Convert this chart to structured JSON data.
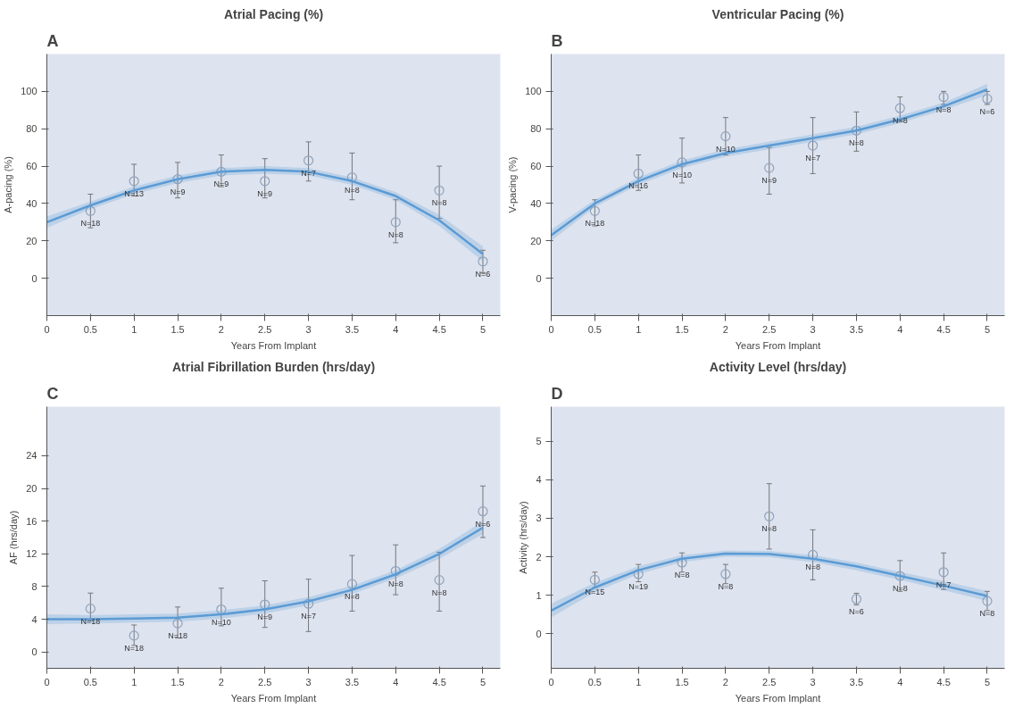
{
  "chart_data": [
    {
      "type": "scatter",
      "title": "Atrial Pacing (%)",
      "xlabel": "Years From Implant",
      "ylabel": "A-pacing (%)",
      "xlim": [
        0,
        5.2
      ],
      "ylim": [
        -20,
        120
      ],
      "xticks": [
        0,
        0.5,
        1,
        1.5,
        2,
        2.5,
        3,
        3.5,
        4,
        4.5,
        5
      ],
      "yticks": [
        0,
        20,
        40,
        60,
        80,
        100
      ],
      "grid": false,
      "marker": "circle",
      "x": [
        0.5,
        1,
        1.5,
        2,
        2.5,
        3,
        3.5,
        4,
        4.5,
        5
      ],
      "series": [
        {
          "color": "#8fa3bd",
          "values": [
            36,
            52,
            53,
            57,
            52,
            63,
            54,
            30,
            47,
            9
          ],
          "errors": [
            [
              27,
              45
            ],
            [
              44,
              61
            ],
            [
              43,
              62
            ],
            [
              49,
              66
            ],
            [
              43,
              64
            ],
            [
              52,
              73
            ],
            [
              42,
              67
            ],
            [
              19,
              42
            ],
            [
              32,
              60
            ],
            [
              3,
              15
            ]
          ]
        },
        {
          "type": "line",
          "color": "#5b9bd5",
          "marker": "none",
          "x": [
            0,
            0.5,
            1,
            1.5,
            2,
            2.5,
            3,
            3.5,
            4,
            4.5,
            5
          ],
          "values": [
            30,
            39,
            47,
            53,
            57,
            58,
            57,
            52,
            44,
            31,
            13
          ],
          "lower": [
            27,
            37,
            45,
            51,
            55,
            56,
            55,
            50,
            42,
            28,
            9
          ],
          "upper": [
            33,
            41,
            49,
            55,
            59,
            60,
            59,
            54,
            46,
            34,
            17
          ]
        }
      ],
      "annotations": [
        "A",
        {
          "text": "N=18",
          "x": 0.5,
          "y": 36
        },
        {
          "text": "N=13",
          "x": 1,
          "y": 52
        },
        {
          "text": "N=9",
          "x": 1.5,
          "y": 53
        },
        {
          "text": "N=9",
          "x": 2,
          "y": 57
        },
        {
          "text": "N=9",
          "x": 2.5,
          "y": 52
        },
        {
          "text": "N=7",
          "x": 3,
          "y": 63
        },
        {
          "text": "N=8",
          "x": 3.5,
          "y": 54
        },
        {
          "text": "N=8",
          "x": 4,
          "y": 30
        },
        {
          "text": "N=8",
          "x": 4.5,
          "y": 47
        },
        {
          "text": "N=6",
          "x": 5,
          "y": 9
        }
      ]
    },
    {
      "type": "scatter",
      "title": "Ventricular Pacing (%)",
      "xlabel": "Years From Implant",
      "ylabel": "V-pacing (%)",
      "xlim": [
        0,
        5.2
      ],
      "ylim": [
        -20,
        120
      ],
      "xticks": [
        0,
        0.5,
        1,
        1.5,
        2,
        2.5,
        3,
        3.5,
        4,
        4.5,
        5
      ],
      "yticks": [
        0,
        20,
        40,
        60,
        80,
        100
      ],
      "grid": false,
      "marker": "circle",
      "x": [
        0.5,
        1,
        1.5,
        2,
        2.5,
        3,
        3.5,
        4,
        4.5,
        5
      ],
      "series": [
        {
          "color": "#8fa3bd",
          "values": [
            36,
            56,
            62,
            76,
            59,
            71,
            79,
            91,
            97,
            96
          ],
          "errors": [
            [
              28,
              42
            ],
            [
              47,
              66
            ],
            [
              51,
              75
            ],
            [
              66,
              86
            ],
            [
              45,
              70
            ],
            [
              56,
              86
            ],
            [
              68,
              89
            ],
            [
              84,
              97
            ],
            [
              93,
              100
            ],
            [
              93,
              100
            ]
          ]
        },
        {
          "type": "line",
          "color": "#5b9bd5",
          "marker": "none",
          "x": [
            0,
            0.5,
            1,
            1.5,
            2,
            2.5,
            3,
            3.5,
            4,
            4.5,
            5
          ],
          "values": [
            23,
            40,
            52,
            61,
            67,
            71,
            75,
            79,
            85,
            92,
            101
          ],
          "lower": [
            20,
            38,
            50,
            59,
            65,
            69,
            73,
            77,
            83,
            90,
            98
          ],
          "upper": [
            26,
            42,
            54,
            63,
            69,
            73,
            77,
            81,
            87,
            94,
            104
          ]
        }
      ],
      "annotations": [
        "B",
        {
          "text": "N=18",
          "x": 0.5,
          "y": 36
        },
        {
          "text": "N=16",
          "x": 1,
          "y": 56
        },
        {
          "text": "N=10",
          "x": 1.5,
          "y": 62
        },
        {
          "text": "N=10",
          "x": 2,
          "y": 76
        },
        {
          "text": "N=9",
          "x": 2.5,
          "y": 59
        },
        {
          "text": "N=7",
          "x": 3,
          "y": 71
        },
        {
          "text": "N=8",
          "x": 3.5,
          "y": 79
        },
        {
          "text": "N=8",
          "x": 4,
          "y": 91
        },
        {
          "text": "N=8",
          "x": 4.5,
          "y": 97
        },
        {
          "text": "N=6",
          "x": 5,
          "y": 96
        }
      ]
    },
    {
      "type": "scatter",
      "title": "Atrial Fibrillation Burden (hrs/day)",
      "xlabel": "Years From Implant",
      "ylabel": "AF (hrs/day)",
      "xlim": [
        0,
        5.2
      ],
      "ylim": [
        -2,
        30
      ],
      "xticks": [
        0,
        0.5,
        1,
        1.5,
        2,
        2.5,
        3,
        3.5,
        4,
        4.5,
        5
      ],
      "yticks": [
        0,
        4,
        8,
        12,
        16,
        20,
        24
      ],
      "grid": false,
      "marker": "circle",
      "x": [
        0.5,
        1,
        1.5,
        2,
        2.5,
        3,
        3.5,
        4,
        4.5,
        5
      ],
      "series": [
        {
          "color": "#8fa3bd",
          "values": [
            5.3,
            2.0,
            3.5,
            5.2,
            5.8,
            5.9,
            8.3,
            9.9,
            8.8,
            17.2
          ],
          "errors": [
            [
              3.8,
              7.2
            ],
            [
              0.8,
              3.3
            ],
            [
              1.7,
              5.5
            ],
            [
              3.2,
              7.8
            ],
            [
              3.0,
              8.7
            ],
            [
              2.5,
              8.9
            ],
            [
              5.0,
              11.8
            ],
            [
              7.0,
              13.1
            ],
            [
              5.0,
              12.2
            ],
            [
              14.0,
              20.3
            ]
          ]
        },
        {
          "type": "line",
          "color": "#5b9bd5",
          "marker": "none",
          "x": [
            0,
            0.5,
            1,
            1.5,
            2,
            2.5,
            3,
            3.5,
            4,
            4.5,
            5
          ],
          "values": [
            4.0,
            4.0,
            4.1,
            4.2,
            4.6,
            5.2,
            6.2,
            7.6,
            9.5,
            12.0,
            15.2
          ],
          "lower": [
            3.4,
            3.5,
            3.6,
            3.7,
            4.1,
            4.7,
            5.7,
            7.1,
            9.0,
            11.4,
            14.4
          ],
          "upper": [
            4.6,
            4.5,
            4.6,
            4.7,
            5.1,
            5.7,
            6.7,
            8.1,
            10.0,
            12.6,
            16.0
          ]
        }
      ],
      "annotations": [
        "C",
        {
          "text": "N=18",
          "x": 0.5,
          "y": 5.3
        },
        {
          "text": "N=18",
          "x": 1,
          "y": 2.0
        },
        {
          "text": "N=18",
          "x": 1.5,
          "y": 3.5
        },
        {
          "text": "N=10",
          "x": 2,
          "y": 5.2
        },
        {
          "text": "N=9",
          "x": 2.5,
          "y": 5.8
        },
        {
          "text": "N=7",
          "x": 3,
          "y": 5.9
        },
        {
          "text": "N=8",
          "x": 3.5,
          "y": 8.3
        },
        {
          "text": "N=8",
          "x": 4,
          "y": 9.9
        },
        {
          "text": "N=8",
          "x": 4.5,
          "y": 8.8
        },
        {
          "text": "N=6",
          "x": 5,
          "y": 17.2
        }
      ]
    },
    {
      "type": "scatter",
      "title": "Activity Level (hrs/day)",
      "xlabel": "Years From Implant",
      "ylabel": "Activity (hrs/day)",
      "xlim": [
        0,
        5.2
      ],
      "ylim": [
        -0.9,
        5.9
      ],
      "xticks": [
        0,
        0.5,
        1,
        1.5,
        2,
        2.5,
        3,
        3.5,
        4,
        4.5,
        5
      ],
      "yticks": [
        0,
        1,
        2,
        3,
        4,
        5
      ],
      "grid": false,
      "marker": "circle",
      "x": [
        0.5,
        1,
        1.5,
        2,
        2.5,
        3,
        3.5,
        4,
        4.5,
        5
      ],
      "series": [
        {
          "color": "#8fa3bd",
          "values": [
            1.4,
            1.55,
            1.85,
            1.55,
            3.05,
            2.05,
            0.9,
            1.5,
            1.6,
            0.85
          ],
          "errors": [
            [
              1.2,
              1.6
            ],
            [
              1.35,
              1.8
            ],
            [
              1.6,
              2.1
            ],
            [
              1.3,
              1.8
            ],
            [
              2.2,
              3.9
            ],
            [
              1.4,
              2.7
            ],
            [
              0.75,
              1.05
            ],
            [
              1.1,
              1.9
            ],
            [
              1.15,
              2.1
            ],
            [
              0.6,
              1.1
            ]
          ]
        },
        {
          "type": "line",
          "color": "#5b9bd5",
          "marker": "none",
          "x": [
            0,
            0.5,
            1,
            1.5,
            2,
            2.5,
            3,
            3.5,
            4,
            4.5,
            5
          ],
          "values": [
            0.6,
            1.2,
            1.65,
            1.95,
            2.08,
            2.07,
            1.95,
            1.75,
            1.5,
            1.25,
            0.98
          ],
          "lower": [
            0.42,
            1.08,
            1.55,
            1.86,
            2.0,
            1.99,
            1.86,
            1.65,
            1.4,
            1.13,
            0.85
          ],
          "upper": [
            0.78,
            1.32,
            1.75,
            2.04,
            2.16,
            2.15,
            2.04,
            1.85,
            1.6,
            1.37,
            1.11
          ]
        }
      ],
      "annotations": [
        "D",
        {
          "text": "N=15",
          "x": 0.5,
          "y": 1.4
        },
        {
          "text": "N=19",
          "x": 1,
          "y": 1.55
        },
        {
          "text": "N=8",
          "x": 1.5,
          "y": 1.85
        },
        {
          "text": "N=8",
          "x": 2,
          "y": 1.55
        },
        {
          "text": "N=8",
          "x": 2.5,
          "y": 3.05
        },
        {
          "text": "N=8",
          "x": 3,
          "y": 2.05
        },
        {
          "text": "N=6",
          "x": 3.5,
          "y": 0.9
        },
        {
          "text": "N=8",
          "x": 4,
          "y": 1.5
        },
        {
          "text": "N=7",
          "x": 4.5,
          "y": 1.6
        },
        {
          "text": "N=8",
          "x": 5,
          "y": 0.85
        }
      ]
    }
  ]
}
